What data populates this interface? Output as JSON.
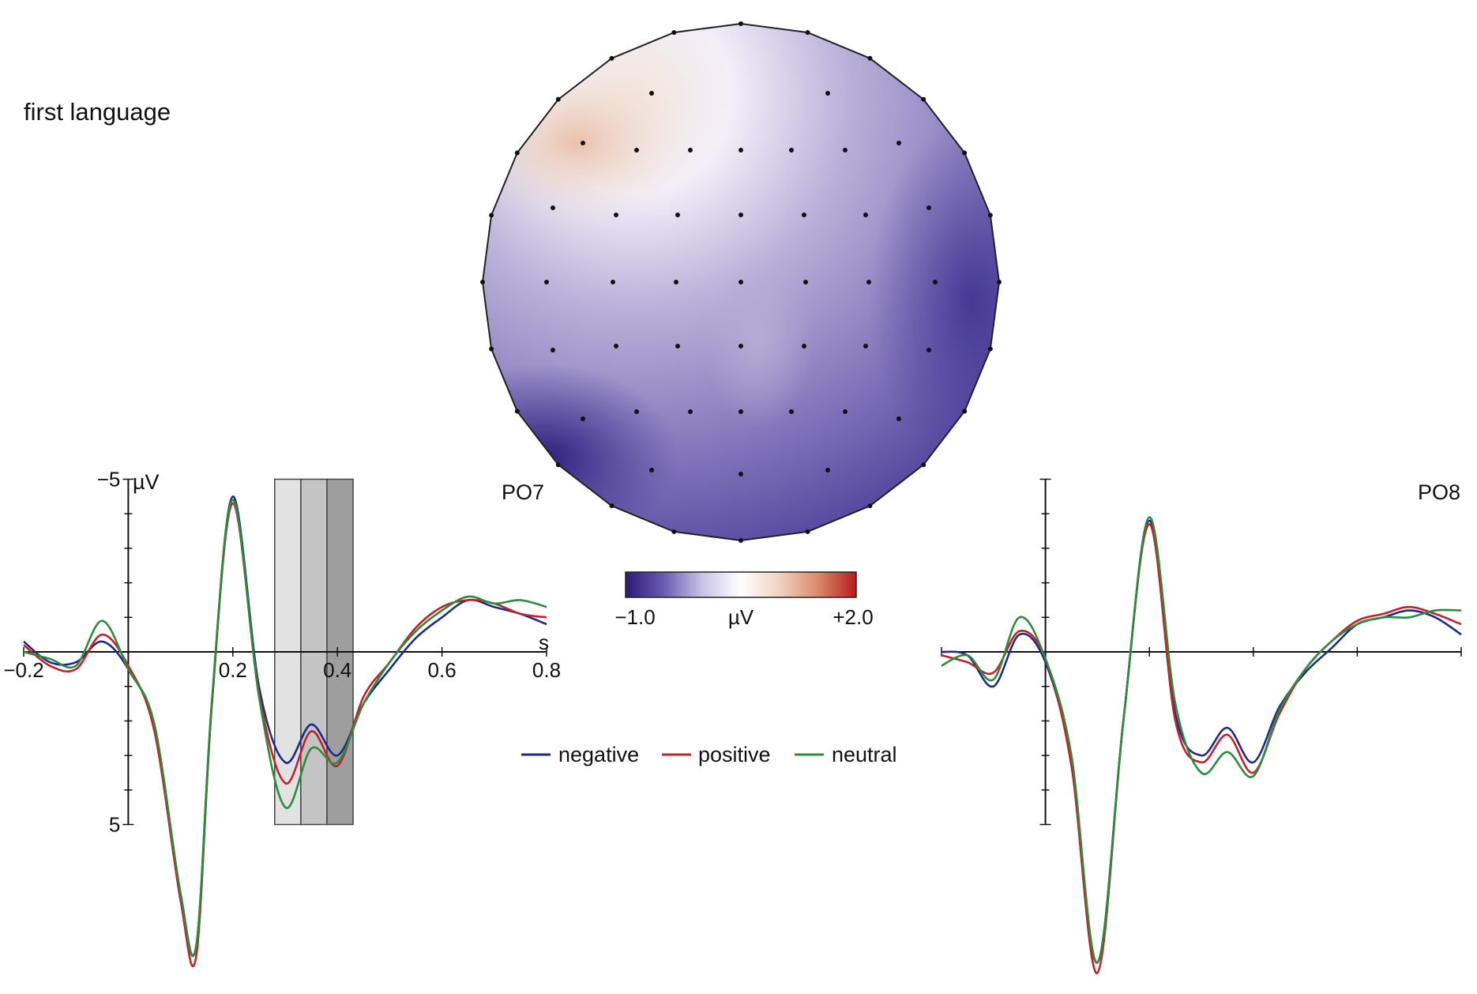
{
  "page": {
    "title": "first language"
  },
  "colors": {
    "negative": "#1f2a86",
    "positive": "#c3202a",
    "neutral": "#2e8b3e",
    "axis": "#111111"
  },
  "topomap": {
    "colorbar": {
      "min_label": "−1.0",
      "unit_label": "µV",
      "max_label": "+2.0",
      "min": -1.0,
      "max": 2.0,
      "stops": [
        "#2b1a78",
        "#6a5cb0",
        "#c9c3e6",
        "#ffffff",
        "#f0d2c0",
        "#d98b6b",
        "#b51c1c"
      ]
    }
  },
  "legend": {
    "items": [
      {
        "key": "negative",
        "label": "negative"
      },
      {
        "key": "positive",
        "label": "positive"
      },
      {
        "key": "neutral",
        "label": "neutral"
      }
    ]
  },
  "chart_data": [
    {
      "type": "line",
      "channel": "PO7",
      "unit_label": "µV",
      "xlabel": "s",
      "y_inverted": true,
      "xlim": [
        -0.2,
        0.8
      ],
      "ylim": [
        -5,
        5
      ],
      "x_ticks": [
        -0.2,
        0.2,
        0.4,
        0.6,
        0.8
      ],
      "x_tick_labels": [
        "−0.2",
        "0.2",
        "0.4",
        "0.6",
        "0.8"
      ],
      "y_tick_labels": [
        {
          "v": -5,
          "t": "−5"
        },
        {
          "v": 5,
          "t": "5"
        }
      ],
      "windows": [
        [
          0.28,
          0.33
        ],
        [
          0.33,
          0.38
        ],
        [
          0.38,
          0.43
        ]
      ],
      "x": [
        -0.2,
        -0.15,
        -0.1,
        -0.05,
        0.0,
        0.05,
        0.1,
        0.13,
        0.16,
        0.2,
        0.25,
        0.3,
        0.35,
        0.4,
        0.45,
        0.5,
        0.55,
        0.6,
        0.65,
        0.7,
        0.75,
        0.8
      ],
      "series": [
        {
          "key": "negative",
          "name": "negative",
          "values": [
            -0.3,
            0.3,
            0.3,
            -0.3,
            0.5,
            2.2,
            7.0,
            8.5,
            1.5,
            -4.5,
            1.0,
            3.2,
            2.1,
            3.0,
            1.5,
            0.5,
            -0.4,
            -1.0,
            -1.5,
            -1.3,
            -1.1,
            -0.8
          ]
        },
        {
          "key": "positive",
          "name": "positive",
          "values": [
            -0.2,
            0.4,
            0.5,
            -0.5,
            0.4,
            2.3,
            7.2,
            8.8,
            1.5,
            -4.3,
            1.2,
            3.8,
            2.3,
            3.3,
            1.3,
            0.3,
            -0.7,
            -1.3,
            -1.5,
            -1.4,
            -1.1,
            -1.0
          ]
        },
        {
          "key": "neutral",
          "name": "neutral",
          "values": [
            0.0,
            0.2,
            0.4,
            -0.9,
            0.5,
            2.1,
            7.0,
            8.5,
            1.4,
            -4.4,
            1.3,
            4.5,
            2.8,
            3.2,
            1.5,
            0.3,
            -0.6,
            -1.2,
            -1.6,
            -1.4,
            -1.5,
            -1.3
          ]
        }
      ]
    },
    {
      "type": "line",
      "channel": "PO8",
      "y_inverted": true,
      "xlim": [
        -0.2,
        0.8
      ],
      "ylim": [
        -5,
        5
      ],
      "x": [
        -0.2,
        -0.15,
        -0.1,
        -0.05,
        0.0,
        0.05,
        0.1,
        0.15,
        0.2,
        0.25,
        0.3,
        0.35,
        0.4,
        0.45,
        0.5,
        0.55,
        0.6,
        0.65,
        0.7,
        0.75,
        0.8
      ],
      "series": [
        {
          "key": "negative",
          "name": "negative",
          "values": [
            0.0,
            0.1,
            1.0,
            -0.5,
            0.3,
            3.2,
            9.0,
            2.0,
            -3.8,
            1.8,
            3.0,
            2.2,
            3.2,
            1.6,
            0.6,
            -0.1,
            -0.8,
            -1.0,
            -1.2,
            -1.0,
            -0.5
          ]
        },
        {
          "key": "positive",
          "name": "positive",
          "values": [
            0.1,
            0.3,
            0.6,
            -0.6,
            0.2,
            3.3,
            9.3,
            2.0,
            -3.7,
            2.0,
            3.2,
            2.4,
            3.5,
            1.8,
            0.5,
            -0.3,
            -0.9,
            -1.1,
            -1.3,
            -1.1,
            -0.8
          ]
        },
        {
          "key": "neutral",
          "name": "neutral",
          "values": [
            0.4,
            0.1,
            0.8,
            -1.0,
            0.2,
            3.0,
            9.0,
            2.0,
            -3.9,
            1.5,
            3.5,
            2.9,
            3.6,
            1.7,
            0.5,
            -0.3,
            -0.8,
            -1.0,
            -1.0,
            -1.2,
            -1.2
          ]
        }
      ]
    }
  ]
}
